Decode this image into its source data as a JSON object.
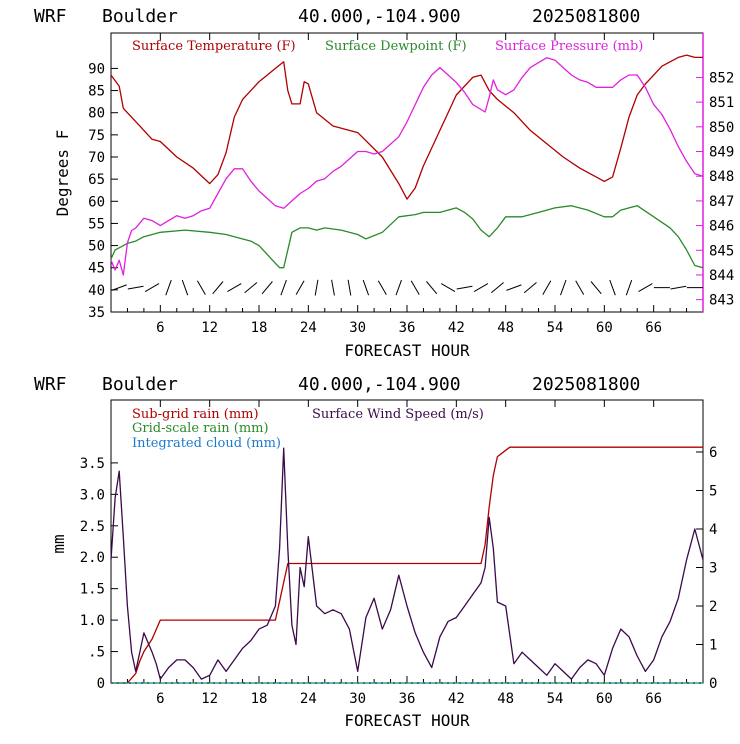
{
  "charts": [
    {
      "header": {
        "model": "WRF",
        "station": "Boulder",
        "coords": "40.000,-104.900",
        "date": "2025081800"
      },
      "xlabel": "FORECAST HOUR",
      "ylabel": "Degrees F",
      "legend": [
        {
          "name": "Surface Temperature (F)",
          "color": "#b00000"
        },
        {
          "name": "Surface Dewpoint (F)",
          "color": "#2a8a2a"
        },
        {
          "name": "Surface Pressure (mb)",
          "color": "#e020e0"
        }
      ]
    },
    {
      "header": {
        "model": "WRF",
        "station": "Boulder",
        "coords": "40.000,-104.900",
        "date": "2025081800"
      },
      "xlabel": "FORECAST HOUR",
      "ylabel": "mm",
      "legend": [
        {
          "name": "Sub-grid rain (mm)",
          "color": "#b00000"
        },
        {
          "name": "Surface Wind Speed (m/s)",
          "color": "#3a0a4a"
        },
        {
          "name": "Grid-scale rain (mm)",
          "color": "#2a8a2a"
        },
        {
          "name": "Integrated cloud (mm)",
          "color": "#1a7ad0"
        }
      ]
    }
  ],
  "chart_data": [
    {
      "type": "line",
      "x_ticks": [
        6,
        12,
        18,
        24,
        30,
        36,
        42,
        48,
        54,
        60,
        66
      ],
      "xlim": [
        0,
        72
      ],
      "y_ticks": [
        35,
        40,
        45,
        50,
        55,
        60,
        65,
        70,
        75,
        80,
        85,
        90
      ],
      "ylim": [
        35,
        98
      ],
      "y2_ticks": [
        843,
        844,
        845,
        846,
        847,
        848,
        849,
        850,
        851,
        852
      ],
      "y2lim": [
        842.5,
        853.8
      ],
      "series": [
        {
          "name": "Surface Temperature (F)",
          "axis": "left",
          "x": [
            0,
            1,
            1.5,
            2,
            3,
            4,
            4.5,
            5,
            6,
            8,
            10,
            12,
            13,
            14,
            15,
            16,
            17,
            18,
            19,
            20,
            21,
            21.5,
            22,
            23,
            23.5,
            24,
            25,
            27,
            30,
            33,
            35,
            36,
            37,
            38,
            40,
            42,
            44,
            45,
            46,
            46.5,
            47,
            48,
            49,
            50,
            51,
            53,
            55,
            57,
            59,
            60,
            61,
            62,
            63,
            64,
            65,
            66,
            67,
            68,
            69,
            70,
            71,
            72
          ],
          "y": [
            88.5,
            86,
            81,
            80,
            78,
            76,
            75,
            74,
            73.5,
            70,
            67.5,
            64,
            66,
            71,
            79,
            83,
            85,
            87,
            88.5,
            90,
            91.5,
            85,
            82,
            82,
            87,
            86.5,
            80,
            77,
            75.5,
            70,
            64,
            60.5,
            63,
            68,
            76,
            84,
            88,
            88.5,
            85,
            84,
            83,
            81.5,
            80,
            78,
            76,
            73,
            70,
            67.5,
            65.5,
            64.5,
            65.5,
            72,
            79,
            84,
            86.5,
            88.5,
            90.5,
            91.5,
            92.5,
            93,
            92.5,
            92.5
          ]
        },
        {
          "name": "Surface Dewpoint (F)",
          "axis": "left",
          "x": [
            0,
            0.5,
            1,
            2,
            3,
            4,
            6,
            9,
            12,
            14,
            15,
            17,
            18,
            19,
            20,
            20.5,
            21,
            22,
            23,
            24,
            25,
            26,
            28,
            30,
            31,
            33,
            35,
            37,
            38,
            40,
            42,
            43,
            44,
            45,
            46,
            47,
            48,
            50,
            52,
            54,
            56,
            58,
            60,
            61,
            62,
            63,
            64,
            66,
            68,
            69,
            70,
            71,
            72
          ],
          "y": [
            47,
            49,
            49.5,
            50.5,
            51,
            52,
            53,
            53.5,
            53,
            52.5,
            52,
            51,
            50,
            48,
            46,
            45,
            45,
            53,
            54,
            54,
            53.5,
            54,
            53.5,
            52.5,
            51.5,
            53,
            56.5,
            57,
            57.5,
            57.5,
            58.5,
            57.5,
            56,
            53.5,
            52,
            54,
            56.5,
            56.5,
            57.5,
            58.5,
            59,
            58,
            56.5,
            56.5,
            58,
            58.5,
            59,
            56.5,
            54,
            52,
            49,
            45.5,
            45
          ]
        },
        {
          "name": "Surface Pressure (mb)",
          "axis": "right",
          "x": [
            0,
            0.5,
            1,
            1.5,
            2,
            2.5,
            3,
            4,
            5,
            6,
            7,
            8,
            9,
            10,
            11,
            12,
            13,
            14,
            15,
            16,
            17,
            18,
            19,
            20,
            21,
            22,
            23,
            24,
            25,
            26,
            27,
            28,
            29,
            30,
            31,
            32,
            33,
            34,
            35,
            36,
            37,
            38,
            39,
            40,
            41,
            42,
            43,
            44,
            45,
            45.5,
            46,
            46.5,
            47,
            48,
            49,
            50,
            51,
            52,
            53,
            54,
            55,
            56,
            57,
            58,
            59,
            60,
            61,
            62,
            63,
            64,
            65,
            66,
            67,
            68,
            69,
            70,
            71,
            72
          ],
          "y": [
            844.6,
            844.2,
            844.6,
            844.0,
            845.3,
            845.8,
            845.9,
            846.3,
            846.2,
            846.0,
            846.2,
            846.4,
            846.3,
            846.4,
            846.6,
            846.7,
            847.3,
            847.9,
            848.3,
            848.3,
            847.8,
            847.4,
            847.1,
            846.8,
            846.7,
            847.0,
            847.3,
            847.5,
            847.8,
            847.9,
            848.2,
            848.4,
            848.7,
            849.0,
            849.0,
            848.9,
            849.0,
            849.3,
            849.6,
            850.2,
            850.9,
            851.6,
            852.1,
            852.4,
            852.1,
            851.8,
            851.4,
            850.9,
            850.7,
            850.6,
            851.2,
            851.9,
            851.5,
            851.3,
            851.5,
            852.0,
            852.4,
            852.6,
            852.8,
            852.7,
            852.4,
            852.1,
            851.9,
            851.8,
            851.6,
            851.6,
            851.6,
            851.9,
            852.1,
            852.1,
            851.6,
            850.9,
            850.5,
            849.9,
            849.2,
            848.6,
            848.1,
            848.0
          ]
        }
      ],
      "wind_barbs": {
        "x": [
          1,
          3,
          5,
          7,
          9,
          11,
          13,
          15,
          17,
          19,
          21,
          23,
          25,
          27,
          29,
          31,
          33,
          35,
          37,
          39,
          41,
          43,
          45,
          47,
          49,
          51,
          53,
          55,
          57,
          59,
          61,
          63,
          65,
          67,
          69,
          71
        ],
        "direction_deg": [
          250,
          260,
          240,
          200,
          160,
          150,
          220,
          240,
          230,
          220,
          200,
          210,
          190,
          170,
          170,
          160,
          150,
          200,
          330,
          320,
          300,
          260,
          240,
          230,
          250,
          230,
          210,
          200,
          150,
          140,
          160,
          200,
          240,
          270,
          260,
          270
        ]
      }
    },
    {
      "type": "line",
      "x_ticks": [
        6,
        12,
        18,
        24,
        30,
        36,
        42,
        48,
        54,
        60,
        66
      ],
      "xlim": [
        0,
        72
      ],
      "y_ticks": [
        0,
        0.5,
        1.0,
        1.5,
        2.0,
        2.5,
        3.0,
        3.5
      ],
      "y_tick_labels": [
        "0",
        ".5",
        "1.0",
        "1.5",
        "2.0",
        "2.5",
        "3.0",
        "3.5"
      ],
      "ylim": [
        0,
        4.5
      ],
      "y2_ticks": [
        0,
        1,
        2,
        3,
        4,
        5,
        6
      ],
      "y2lim": [
        0,
        7.35
      ],
      "series": [
        {
          "name": "Sub-grid rain (mm)",
          "axis": "left",
          "x": [
            0,
            2,
            3,
            3.5,
            4,
            5,
            6,
            20,
            20.5,
            21,
            21.5,
            22,
            45,
            45.5,
            46,
            46.5,
            47,
            48,
            48.5,
            72
          ],
          "y": [
            0,
            0,
            0.15,
            0.35,
            0.5,
            0.7,
            1.0,
            1.0,
            1.3,
            1.6,
            1.9,
            1.9,
            1.9,
            2.2,
            2.8,
            3.3,
            3.6,
            3.7,
            3.75,
            3.75
          ]
        },
        {
          "name": "Surface Wind Speed (m/s)",
          "axis": "right",
          "x": [
            0,
            0.5,
            1,
            1.5,
            2,
            2.5,
            3,
            3.5,
            4,
            5,
            5.5,
            6,
            7,
            8,
            9,
            10,
            11,
            12,
            13,
            14,
            15,
            16,
            17,
            18,
            19,
            20,
            20.5,
            21,
            21.5,
            22,
            22.5,
            23,
            23.5,
            24,
            25,
            26,
            27,
            28,
            29,
            30,
            31,
            32,
            33,
            34,
            35,
            36,
            37,
            38,
            39,
            40,
            41,
            42,
            43,
            44,
            45,
            45.5,
            46,
            46.5,
            47,
            48,
            49,
            50,
            51,
            52,
            53,
            54,
            55,
            56,
            57,
            58,
            59,
            60,
            61,
            62,
            63,
            64,
            65,
            66,
            67,
            68,
            69,
            70,
            71,
            72
          ],
          "y": [
            3.2,
            4.8,
            5.5,
            3.8,
            2.0,
            0.8,
            0.3,
            0.8,
            1.3,
            0.8,
            0.5,
            0.1,
            0.4,
            0.6,
            0.6,
            0.4,
            0.1,
            0.2,
            0.6,
            0.3,
            0.6,
            0.9,
            1.1,
            1.4,
            1.5,
            2.0,
            3.5,
            6.1,
            3.5,
            1.5,
            1.0,
            3.0,
            2.5,
            3.8,
            2.0,
            1.8,
            1.9,
            1.8,
            1.4,
            0.3,
            1.7,
            2.2,
            1.4,
            1.9,
            2.8,
            2.0,
            1.3,
            0.8,
            0.4,
            1.2,
            1.6,
            1.7,
            2.0,
            2.3,
            2.6,
            3.0,
            4.3,
            3.5,
            2.1,
            2.0,
            0.5,
            0.8,
            0.6,
            0.4,
            0.2,
            0.5,
            0.3,
            0.1,
            0.4,
            0.6,
            0.5,
            0.2,
            0.9,
            1.4,
            1.2,
            0.7,
            0.3,
            0.6,
            1.2,
            1.6,
            2.2,
            3.2,
            4.0,
            3.2
          ]
        },
        {
          "name": "Grid-scale rain (mm)",
          "axis": "left",
          "x": [
            0,
            72
          ],
          "y": [
            0,
            0
          ]
        },
        {
          "name": "Integrated cloud (mm)",
          "axis": "left",
          "x": [
            0,
            72
          ],
          "y": [
            0,
            0
          ]
        }
      ]
    }
  ]
}
